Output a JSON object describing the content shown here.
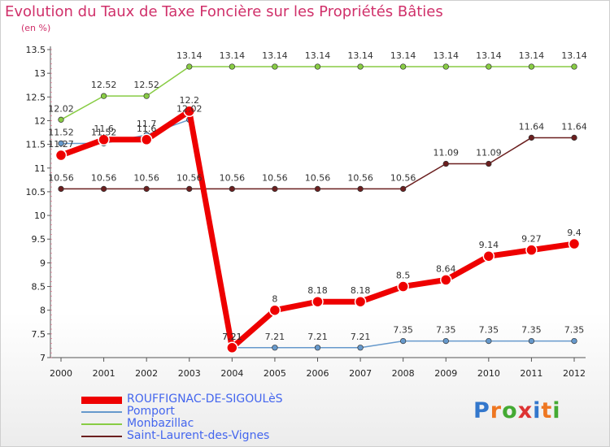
{
  "title": "Evolution du Taux de Taxe Foncière sur les Propriétés Bâties",
  "unit": "(en %)",
  "logo": "Proxiti",
  "chart_data": {
    "type": "line",
    "title": "Evolution du Taux de Taxe Foncière sur les Propriétés Bâties",
    "ylabel": "(en %)",
    "xlabel": "",
    "ylim": [
      7,
      13.5
    ],
    "yticks": [
      "7",
      "7.5",
      "8",
      "8.5",
      "9",
      "9.5",
      "10",
      "10.5",
      "11",
      "11.5",
      "12",
      "12.5",
      "13",
      "13.5"
    ],
    "categories": [
      "2000",
      "2001",
      "2002",
      "2003",
      "2004",
      "2005",
      "2006",
      "2007",
      "2008",
      "2009",
      "2010",
      "2011",
      "2012"
    ],
    "series": [
      {
        "name": "ROUFFIGNAC-DE-SIGOULèS",
        "color": "#ee0000",
        "values": [
          11.27,
          11.6,
          11.6,
          12.2,
          7.21,
          8,
          8.18,
          8.18,
          8.5,
          8.64,
          9.14,
          9.27,
          9.4
        ],
        "labels": [
          "11.27",
          "11.6",
          "11.6",
          "12.2",
          "7.21",
          "8",
          "8.18",
          "8.18",
          "8.5",
          "8.64",
          "9.14",
          "9.27",
          "9.4"
        ]
      },
      {
        "name": "Pomport",
        "color": "#6699cc",
        "values": [
          11.52,
          11.52,
          11.7,
          12.02,
          7.21,
          7.21,
          7.21,
          7.21,
          7.35,
          7.35,
          7.35,
          7.35,
          7.35
        ],
        "labels": [
          "11.52",
          "11.52",
          "11.7",
          "12.02",
          "7.21",
          "7.21",
          "7.21",
          "7.21",
          "7.35",
          "7.35",
          "7.35",
          "7.35",
          "7.35"
        ]
      },
      {
        "name": "Monbazillac",
        "color": "#88cc44",
        "values": [
          12.02,
          12.52,
          12.52,
          13.14,
          13.14,
          13.14,
          13.14,
          13.14,
          13.14,
          13.14,
          13.14,
          13.14,
          13.14
        ],
        "labels": [
          "12.02",
          "12.52",
          "12.52",
          "13.14",
          "13.14",
          "13.14",
          "13.14",
          "13.14",
          "13.14",
          "13.14",
          "13.14",
          "13.14",
          "13.14"
        ]
      },
      {
        "name": "Saint-Laurent-des-Vignes",
        "color": "#6b1f1f",
        "values": [
          10.56,
          10.56,
          10.56,
          10.56,
          10.56,
          10.56,
          10.56,
          10.56,
          10.56,
          11.09,
          11.09,
          11.64,
          11.64
        ],
        "labels": [
          "10.56",
          "10.56",
          "10.56",
          "10.56",
          "10.56",
          "10.56",
          "10.56",
          "10.56",
          "10.56",
          "11.09",
          "11.09",
          "11.64",
          "11.64"
        ]
      }
    ],
    "legend": "bottom-left",
    "grid": false
  }
}
